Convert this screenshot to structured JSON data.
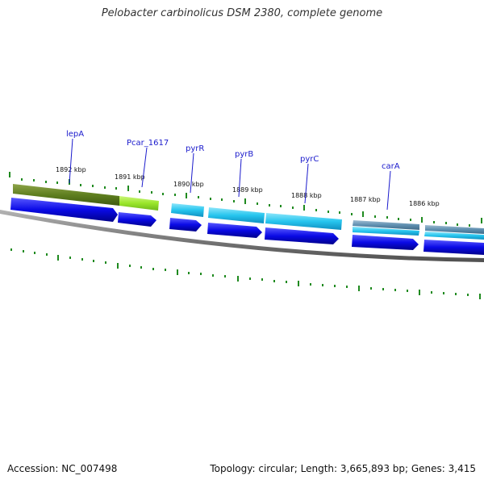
{
  "title": "Pelobacter carbinolicus DSM 2380, complete genome",
  "footer": {
    "accession": "Accession: NC_007498",
    "stats": "Topology: circular; Length: 3,665,893 bp; Genes: 3,415"
  },
  "colors": {
    "backbone": "#7f7f7f",
    "tick": "#1f8a1f",
    "cds_forward": "#0a0ae6",
    "label": "#1a1acc",
    "olive": "#5f7f1f",
    "lime": "#9ae62a",
    "cyan": "#26c5ee",
    "steel": "#5f8fb0"
  },
  "kbp_labels": [
    "1892 kbp",
    "1891 kbp",
    "1890 kbp",
    "1889 kbp",
    "1888 kbp",
    "1887 kbp",
    "1886 kbp"
  ],
  "gene_labels": [
    "lepA",
    "Pcar_1617",
    "pyrR",
    "pyrB",
    "pyrC",
    "carA"
  ]
}
